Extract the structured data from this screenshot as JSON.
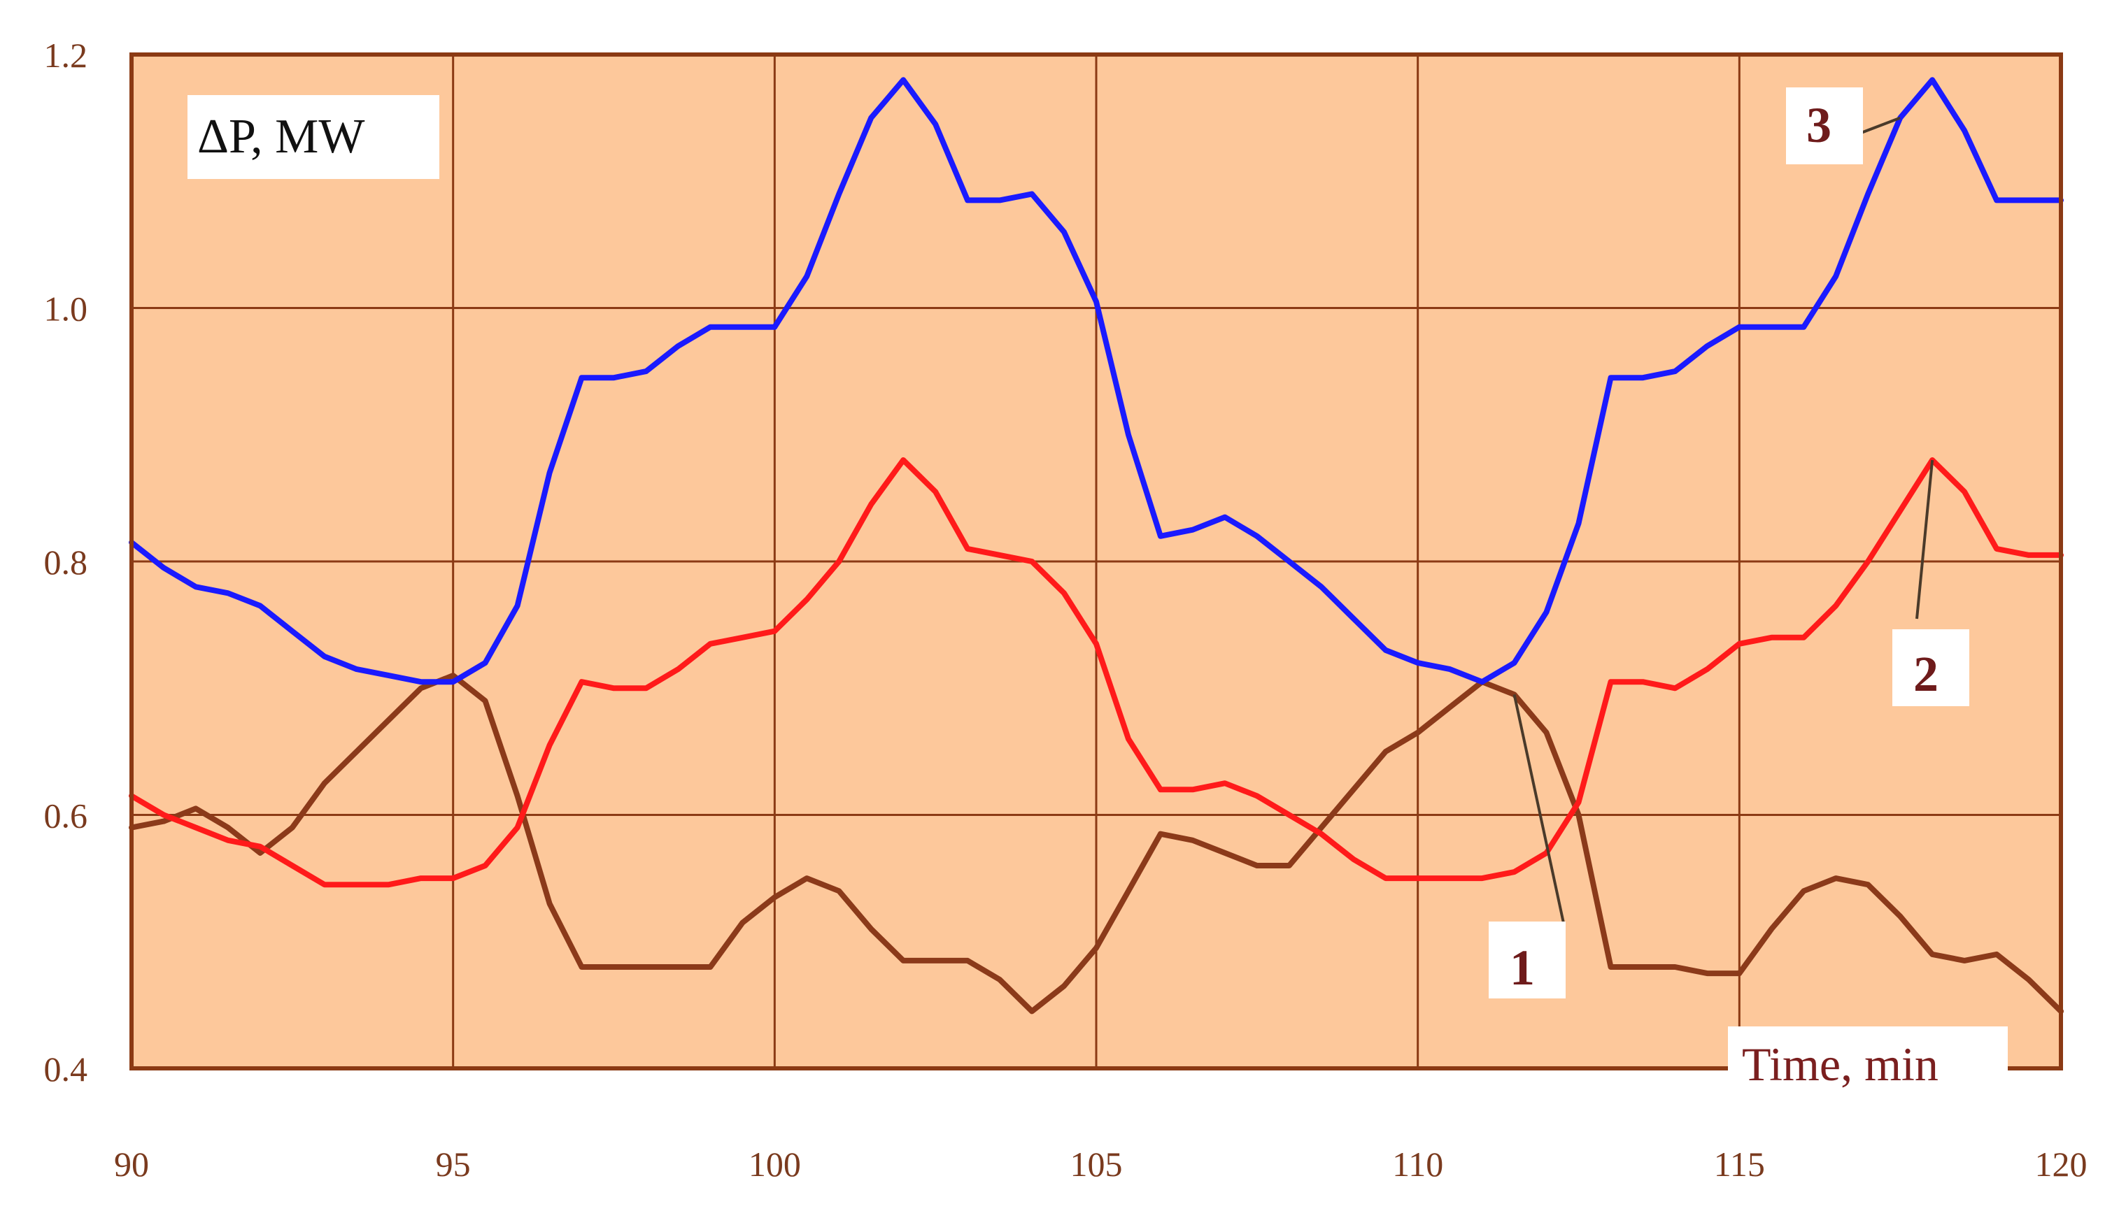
{
  "chart_data": {
    "type": "line",
    "ylabel": "ΔP, MW",
    "xlabel": "Time, min",
    "xlim": [
      90,
      120
    ],
    "ylim": [
      0.4,
      1.2
    ],
    "xticks": [
      "90",
      "95",
      "100",
      "105",
      "110",
      "115",
      "120"
    ],
    "yticks": [
      "0.4",
      "0.6",
      "0.8",
      "1.0",
      "1.2"
    ],
    "grid": true,
    "background_color": "#fdc89b",
    "grid_color": "#8b3a14",
    "series": [
      {
        "name": "1",
        "color": "#8b3a1a",
        "x": [
          90,
          90.5,
          91,
          91.5,
          92,
          92.5,
          93,
          93.5,
          94,
          94.5,
          95,
          95.5,
          96,
          96.5,
          97,
          97.5,
          98,
          98.5,
          99,
          99.5,
          100,
          100.5,
          101,
          101.5,
          102,
          102.5,
          103,
          103.5,
          104,
          104.5,
          105,
          105.5,
          106,
          106.5,
          107,
          107.5,
          108,
          108.5,
          109,
          109.5,
          110,
          110.5,
          111,
          111.5,
          112,
          112.5,
          113,
          113.5,
          114,
          114.5,
          115,
          115.5,
          116,
          116.5,
          117,
          117.5,
          118,
          118.5,
          119,
          119.5,
          120
        ],
        "y": [
          0.59,
          0.595,
          0.605,
          0.59,
          0.57,
          0.59,
          0.625,
          0.65,
          0.675,
          0.7,
          0.71,
          0.69,
          0.615,
          0.53,
          0.48,
          0.48,
          0.48,
          0.48,
          0.48,
          0.515,
          0.535,
          0.55,
          0.54,
          0.51,
          0.485,
          0.485,
          0.485,
          0.47,
          0.445,
          0.465,
          0.495,
          0.54,
          0.585,
          0.58,
          0.57,
          0.56,
          0.56,
          0.59,
          0.62,
          0.65,
          0.665,
          0.685,
          0.705,
          0.695,
          0.665,
          0.6,
          0.48,
          0.48,
          0.48,
          0.475,
          0.475,
          0.51,
          0.54,
          0.55,
          0.545,
          0.52,
          0.49,
          0.485,
          0.49,
          0.47,
          0.445
        ]
      },
      {
        "name": "2",
        "color": "#ff1a1a",
        "x": [
          90,
          90.5,
          91,
          91.5,
          92,
          92.5,
          93,
          93.5,
          94,
          94.5,
          95,
          95.5,
          96,
          96.5,
          97,
          97.5,
          98,
          98.5,
          99,
          99.5,
          100,
          100.5,
          101,
          101.5,
          102,
          102.5,
          103,
          103.5,
          104,
          104.5,
          105,
          105.5,
          106,
          106.5,
          107,
          107.5,
          108,
          108.5,
          109,
          109.5,
          110,
          110.5,
          111,
          111.5,
          112,
          112.5,
          113,
          113.5,
          114,
          114.5,
          115,
          115.5,
          116,
          116.5,
          117,
          117.5,
          118,
          118.5,
          119,
          119.5,
          120
        ],
        "y": [
          0.615,
          0.6,
          0.59,
          0.58,
          0.575,
          0.56,
          0.545,
          0.545,
          0.545,
          0.55,
          0.55,
          0.56,
          0.59,
          0.655,
          0.705,
          0.7,
          0.7,
          0.715,
          0.735,
          0.74,
          0.745,
          0.77,
          0.8,
          0.845,
          0.88,
          0.855,
          0.81,
          0.805,
          0.8,
          0.775,
          0.735,
          0.66,
          0.62,
          0.62,
          0.625,
          0.615,
          0.6,
          0.585,
          0.565,
          0.55,
          0.55,
          0.55,
          0.55,
          0.555,
          0.57,
          0.61,
          0.705,
          0.705,
          0.7,
          0.715,
          0.735,
          0.74,
          0.74,
          0.765,
          0.8,
          0.84,
          0.88,
          0.855,
          0.81,
          0.805,
          0.805
        ]
      },
      {
        "name": "3",
        "color": "#1a1aff",
        "x": [
          90,
          90.5,
          91,
          91.5,
          92,
          92.5,
          93,
          93.5,
          94,
          94.5,
          95,
          95.5,
          96,
          96.5,
          97,
          97.5,
          98,
          98.5,
          99,
          99.5,
          100,
          100.5,
          101,
          101.5,
          102,
          102.5,
          103,
          103.5,
          104,
          104.5,
          105,
          105.5,
          106,
          106.5,
          107,
          107.5,
          108,
          108.5,
          109,
          109.5,
          110,
          110.5,
          111,
          111.5,
          112,
          112.5,
          113,
          113.5,
          114,
          114.5,
          115,
          115.5,
          116,
          116.5,
          117,
          117.5,
          118,
          118.5,
          119,
          119.5,
          120
        ],
        "y": [
          0.815,
          0.795,
          0.78,
          0.775,
          0.765,
          0.745,
          0.725,
          0.715,
          0.71,
          0.705,
          0.705,
          0.72,
          0.765,
          0.87,
          0.945,
          0.945,
          0.95,
          0.97,
          0.985,
          0.985,
          0.985,
          1.025,
          1.09,
          1.15,
          1.18,
          1.145,
          1.085,
          1.085,
          1.09,
          1.06,
          1.005,
          0.9,
          0.82,
          0.825,
          0.835,
          0.82,
          0.8,
          0.78,
          0.755,
          0.73,
          0.72,
          0.715,
          0.705,
          0.72,
          0.76,
          0.83,
          0.945,
          0.945,
          0.95,
          0.97,
          0.985,
          0.985,
          0.985,
          1.025,
          1.09,
          1.15,
          1.18,
          1.14,
          1.085,
          1.085,
          1.085
        ]
      }
    ],
    "annotations": [
      {
        "series": "1",
        "label": "1"
      },
      {
        "series": "2",
        "label": "2"
      },
      {
        "series": "3",
        "label": "3"
      }
    ]
  }
}
